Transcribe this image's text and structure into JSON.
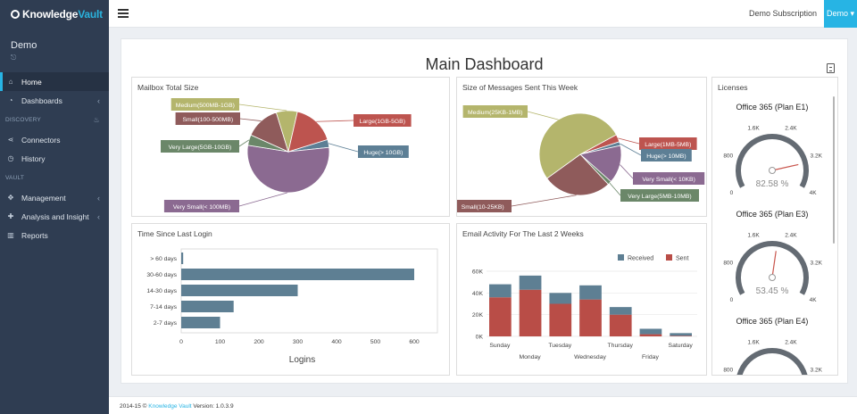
{
  "app": {
    "logo_prefix": "Knowledge",
    "logo_suffix": "Vault",
    "subscription": "Demo Subscription",
    "user_menu": "Demo ▾"
  },
  "sidebar": {
    "user_name": "Demo",
    "user_icon": "⊏⁠",
    "items_top": [
      {
        "label": "Home",
        "icon": "home-icon",
        "glyph": "⌂",
        "active": true
      },
      {
        "label": "Dashboards",
        "icon": "dashboard-icon",
        "glyph": "◔",
        "chevron": "‹"
      }
    ],
    "section_discovery": "DISCOVERY",
    "discovery_items": [
      {
        "label": "Connectors",
        "icon": "share-icon",
        "glyph": "⋖"
      },
      {
        "label": "History",
        "icon": "clock-icon",
        "glyph": "◷"
      }
    ],
    "section_vault": "VAULT",
    "vault_items": [
      {
        "label": "Management",
        "icon": "gamepad-icon",
        "glyph": "✥",
        "chevron": "‹"
      },
      {
        "label": "Analysis and Insight",
        "icon": "puzzle-icon",
        "glyph": "✚",
        "chevron": "‹"
      },
      {
        "label": "Reports",
        "icon": "bar-chart-icon",
        "glyph": "▥"
      }
    ]
  },
  "main": {
    "title": "Main Dashboard"
  },
  "colors": {
    "sidebar_bg": "#2f3d52",
    "accent": "#27b4e4",
    "bar_blue": "#5e7f93",
    "bar_red": "#b94d47",
    "gauge_dark": "#646b73",
    "gauge_text": "#8a8a8a"
  },
  "chart_data": [
    {
      "id": "mailbox",
      "type": "pie",
      "title": "Mailbox Total Size",
      "slices": [
        {
          "label": "Huge(> 10GB)",
          "value": 3,
          "color": "#5d7f95"
        },
        {
          "label": "Very Small(< 100MB)",
          "value": 52,
          "color": "#8b6a91"
        },
        {
          "label": "Very Large(5GB-10GB)",
          "value": 4,
          "color": "#6b8769"
        },
        {
          "label": "Small(100-500MB)",
          "value": 13,
          "color": "#8f5b5b"
        },
        {
          "label": "Medium(500MB-1GB)",
          "value": 8,
          "color": "#b4b56c"
        },
        {
          "label": "Large(1GB-5GB)",
          "value": 16,
          "color": "#bd544f"
        }
      ]
    },
    {
      "id": "msgsize",
      "type": "pie",
      "title": "Size of Messages Sent This Week",
      "slices": [
        {
          "label": "Large(1MB-5MB)",
          "value": 3,
          "color": "#bd544f"
        },
        {
          "label": "Huge(> 10MB)",
          "value": 1.5,
          "color": "#5d7f95"
        },
        {
          "label": "Very Small(< 10KB)",
          "value": 15,
          "color": "#8b6a91"
        },
        {
          "label": "Very Large(5MB-10MB)",
          "value": 1.5,
          "color": "#6b8769"
        },
        {
          "label": "Small(10-25KB)",
          "value": 27,
          "color": "#8f5b5b"
        },
        {
          "label": "Medium(25KB-1MB)",
          "value": 52,
          "color": "#b4b56c"
        }
      ]
    },
    {
      "id": "logins",
      "type": "bar",
      "orientation": "horizontal",
      "title": "Time Since Last Login",
      "categories": [
        "> 60 days",
        "30-60 days",
        "14-30 days",
        "7-14 days",
        "2-7 days"
      ],
      "values": [
        5,
        600,
        300,
        135,
        100
      ],
      "xlim": [
        0,
        600
      ],
      "xticks": [
        "0",
        "100",
        "200",
        "300",
        "400",
        "500",
        "600"
      ],
      "xlabel": "Logins",
      "color": "#5e7f93"
    },
    {
      "id": "email",
      "type": "bar",
      "stacked": true,
      "title": "Email Activity For The Last 2 Weeks",
      "categories_top": [
        "Sunday",
        "Tuesday",
        "Thursday",
        "Saturday"
      ],
      "categories_bottom": [
        "Monday",
        "Wednesday",
        "Friday"
      ],
      "series": [
        {
          "name": "Sent",
          "color": "#b94d47",
          "values": [
            36000,
            43000,
            30000,
            34000,
            20000,
            2000,
            500
          ]
        },
        {
          "name": "Received",
          "color": "#5e7f93",
          "values": [
            12000,
            13000,
            10000,
            13000,
            7000,
            5000,
            2500
          ]
        }
      ],
      "ylim": [
        0,
        60000
      ],
      "yticks": [
        "0K",
        "20K",
        "40K",
        "60K"
      ],
      "legend": [
        "Received",
        "Sent"
      ]
    },
    {
      "id": "licenses",
      "type": "gauge",
      "title": "Licenses",
      "max": 4000,
      "tick_labels": [
        "0",
        "800",
        "1.6K",
        "2.4K",
        "3.2K",
        "4K"
      ],
      "gauges": [
        {
          "name": "Office 365 (Plan E1)",
          "value": 3303,
          "percent": "82.58 %"
        },
        {
          "name": "Office 365 (Plan E3)",
          "value": 2138,
          "percent": "53.45 %"
        },
        {
          "name": "Office 365 (Plan E4)",
          "value": null,
          "percent": ""
        }
      ]
    }
  ],
  "footer": {
    "prefix": "2014-15 © ",
    "link": "Knowledge Vault",
    "suffix": " Version: 1.0.3.9"
  }
}
